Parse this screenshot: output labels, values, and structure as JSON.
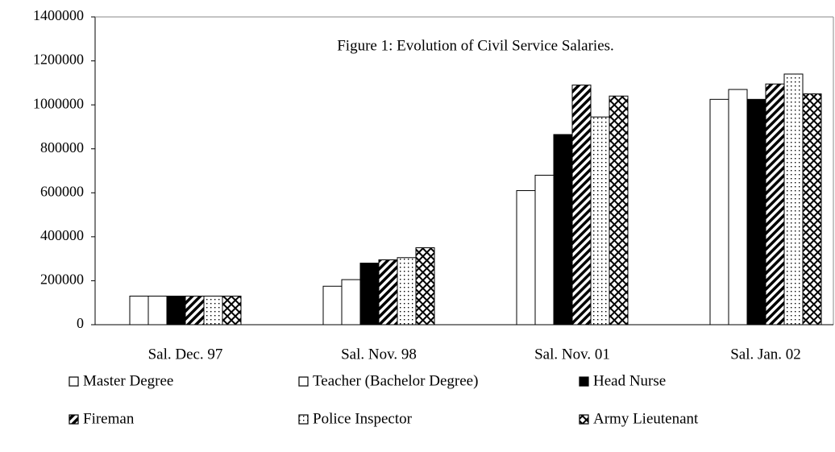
{
  "chart_data": {
    "type": "bar",
    "title": "Figure 1: Evolution of Civil Service Salaries.",
    "categories": [
      "Sal. Dec. 97",
      "Sal. Nov. 98",
      "Sal. Nov. 01",
      "Sal. Jan. 02"
    ],
    "series": [
      {
        "name": "Master Degree",
        "color": "#ffffff",
        "pattern": "solid",
        "values": [
          130000,
          175000,
          610000,
          1025000
        ]
      },
      {
        "name": "Teacher (Bachelor Degree)",
        "color": "#ffffff",
        "pattern": "solid",
        "values": [
          130000,
          205000,
          680000,
          1070000
        ]
      },
      {
        "name": "Head Nurse",
        "color": "#000000",
        "pattern": "solid",
        "values": [
          130000,
          280000,
          865000,
          1025000
        ]
      },
      {
        "name": "Fireman",
        "color": "#ffffff",
        "pattern": "hatch",
        "values": [
          130000,
          295000,
          1090000,
          1095000
        ]
      },
      {
        "name": "Police Inspector",
        "color": "#ffffff",
        "pattern": "dots",
        "values": [
          130000,
          305000,
          945000,
          1140000
        ]
      },
      {
        "name": "Army Lieutenant",
        "color": "#ffffff",
        "pattern": "cross",
        "values": [
          130000,
          350000,
          1040000,
          1050000
        ]
      }
    ],
    "ylim": [
      0,
      1400000
    ],
    "yticks": [
      0,
      200000,
      400000,
      600000,
      800000,
      1000000,
      1200000,
      1400000
    ],
    "grid": false,
    "legend": "bottom"
  }
}
